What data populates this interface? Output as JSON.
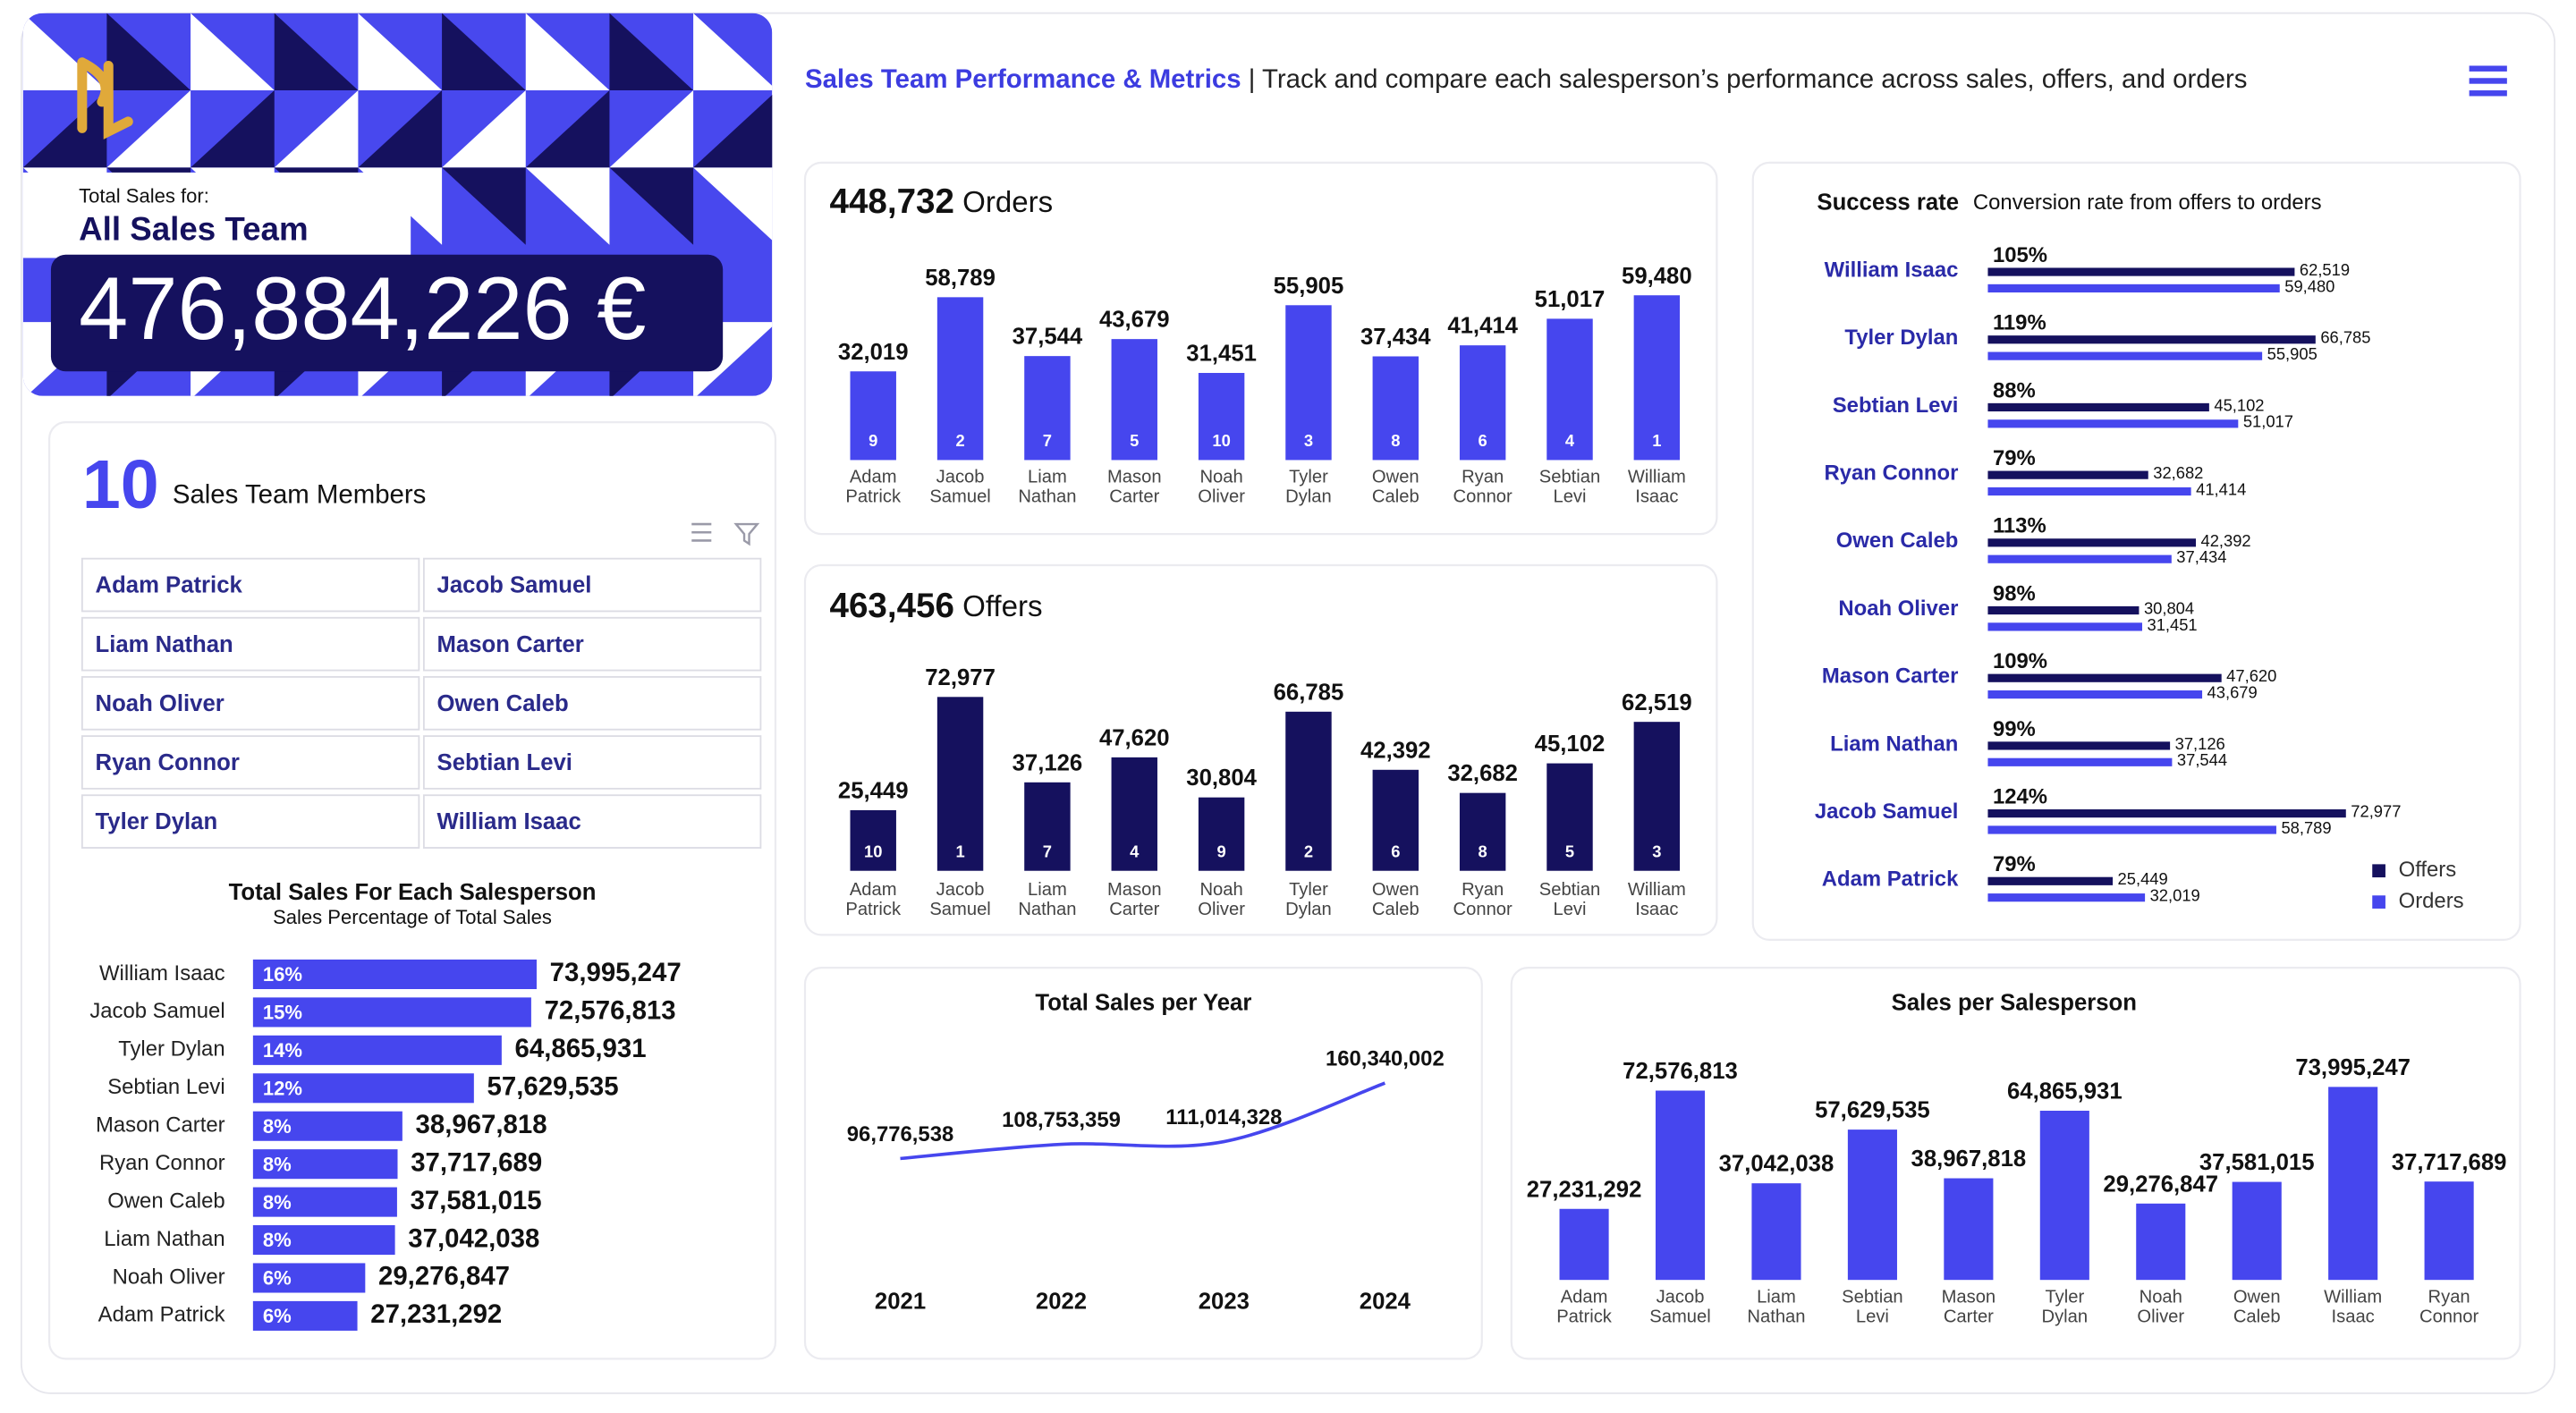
{
  "header": {
    "title": "Sales Team Performance & Metrics",
    "subtitle": " | Track and compare each salesperson’s performance across sales, offers, and orders"
  },
  "kpi": {
    "label": "Total Sales for:",
    "team": "All Sales Team",
    "value": "476,884,226 €"
  },
  "members": {
    "count": 10,
    "label": "Sales Team Members",
    "names": [
      "Adam Patrick",
      "Jacob Samuel",
      "Liam Nathan",
      "Mason Carter",
      "Noah Oliver",
      "Owen Caleb",
      "Ryan Connor",
      "Sebtian Levi",
      "Tyler Dylan",
      "William Isaac"
    ]
  },
  "chart_data": [
    {
      "type": "bar",
      "total": "448,732",
      "title": "Orders",
      "color": "#4646ee",
      "categories": [
        "Adam Patrick",
        "Jacob Samuel",
        "Liam Nathan",
        "Mason Carter",
        "Noah Oliver",
        "Tyler Dylan",
        "Owen Caleb",
        "Ryan Connor",
        "Sebtian Levi",
        "William Isaac"
      ],
      "values": [
        32019,
        58789,
        37544,
        43679,
        31451,
        55905,
        37434,
        41414,
        51017,
        59480
      ],
      "value_labels": [
        "32,019",
        "58,789",
        "37,544",
        "43,679",
        "31,451",
        "55,905",
        "37,434",
        "41,414",
        "51,017",
        "59,480"
      ],
      "ranks": [
        9,
        2,
        7,
        5,
        10,
        3,
        8,
        6,
        4,
        1
      ],
      "ylim": [
        0,
        70000
      ]
    },
    {
      "type": "bar",
      "total": "463,456",
      "title": "Offers",
      "color": "#15115e",
      "categories": [
        "Adam Patrick",
        "Jacob Samuel",
        "Liam Nathan",
        "Mason Carter",
        "Noah Oliver",
        "Tyler Dylan",
        "Owen Caleb",
        "Ryan Connor",
        "Sebtian Levi",
        "William Isaac"
      ],
      "values": [
        25449,
        72977,
        37126,
        47620,
        30804,
        66785,
        42392,
        32682,
        45102,
        62519
      ],
      "value_labels": [
        "25,449",
        "72,977",
        "37,126",
        "47,620",
        "30,804",
        "66,785",
        "42,392",
        "32,682",
        "45,102",
        "62,519"
      ],
      "ranks": [
        10,
        1,
        7,
        4,
        9,
        2,
        6,
        8,
        5,
        3
      ],
      "ylim": [
        0,
        80000
      ]
    },
    {
      "type": "barh",
      "title": "Success rate",
      "subtitle": "Conversion rate from offers to orders",
      "categories": [
        "William Isaac",
        "Tyler Dylan",
        "Sebtian Levi",
        "Ryan Connor",
        "Owen Caleb",
        "Noah Oliver",
        "Mason Carter",
        "Liam Nathan",
        "Jacob Samuel",
        "Adam Patrick"
      ],
      "rate_labels": [
        "105%",
        "119%",
        "88%",
        "79%",
        "113%",
        "98%",
        "109%",
        "99%",
        "124%",
        "79%"
      ],
      "series": [
        {
          "name": "Offers",
          "color": "#15115e",
          "values": [
            62519,
            66785,
            45102,
            32682,
            42392,
            30804,
            47620,
            37126,
            72977,
            25449
          ],
          "value_labels": [
            "62,519",
            "66,785",
            "45,102",
            "32,682",
            "42,392",
            "30,804",
            "47,620",
            "37,126",
            "72,977",
            "25,449"
          ]
        },
        {
          "name": "Orders",
          "color": "#4646ee",
          "values": [
            59480,
            55905,
            51017,
            41414,
            37434,
            31451,
            43679,
            37544,
            58789,
            32019
          ],
          "value_labels": [
            "59,480",
            "55,905",
            "51,017",
            "41,414",
            "37,434",
            "31,451",
            "43,679",
            "37,544",
            "58,789",
            "32,019"
          ]
        }
      ],
      "xlim": [
        0,
        75000
      ],
      "legend": "bottom-right"
    },
    {
      "type": "barh",
      "title": "Total Sales For Each Salesperson",
      "subtitle": "Sales Percentage of Total Sales",
      "color": "#4646ee",
      "categories": [
        "William Isaac",
        "Jacob Samuel",
        "Tyler Dylan",
        "Sebtian Levi",
        "Mason Carter",
        "Ryan Connor",
        "Owen Caleb",
        "Liam Nathan",
        "Noah Oliver",
        "Adam Patrick"
      ],
      "values": [
        73995247,
        72576813,
        64865931,
        57629535,
        38967818,
        37717689,
        37581015,
        37042038,
        29276847,
        27231292
      ],
      "value_labels": [
        "73,995,247",
        "72,576,813",
        "64,865,931",
        "57,629,535",
        "38,967,818",
        "37,717,689",
        "37,581,015",
        "37,042,038",
        "29,276,847",
        "27,231,292"
      ],
      "percent_labels": [
        "16%",
        "15%",
        "14%",
        "12%",
        "8%",
        "8%",
        "8%",
        "8%",
        "6%",
        "6%"
      ],
      "xlim": [
        0,
        75000000
      ]
    },
    {
      "type": "line",
      "title": "Total Sales per Year",
      "color": "#4646ee",
      "categories": [
        "2021",
        "2022",
        "2023",
        "2024"
      ],
      "values": [
        96776538,
        108753359,
        111014328,
        160340002
      ],
      "value_labels": [
        "96,776,538",
        "108,753,359",
        "111,014,328",
        "160,340,002"
      ],
      "ylim": [
        0,
        180000000
      ]
    },
    {
      "type": "bar",
      "title": "Sales per Salesperson",
      "color": "#4646ee",
      "categories": [
        "Adam Patrick",
        "Jacob Samuel",
        "Liam Nathan",
        "Sebtian Levi",
        "Mason Carter",
        "Tyler Dylan",
        "Noah Oliver",
        "Owen Caleb",
        "William Isaac",
        "Ryan Connor"
      ],
      "values": [
        27231292,
        72576813,
        37042038,
        57629535,
        38967818,
        64865931,
        29276847,
        37581015,
        73995247,
        37717689
      ],
      "value_labels": [
        "27,231,292",
        "72,576,813",
        "37,042,038",
        "57,629,535",
        "38,967,818",
        "64,865,931",
        "29,276,847",
        "37,581,015",
        "73,995,247",
        "37,717,689"
      ],
      "ylim": [
        0,
        80000000
      ]
    }
  ]
}
